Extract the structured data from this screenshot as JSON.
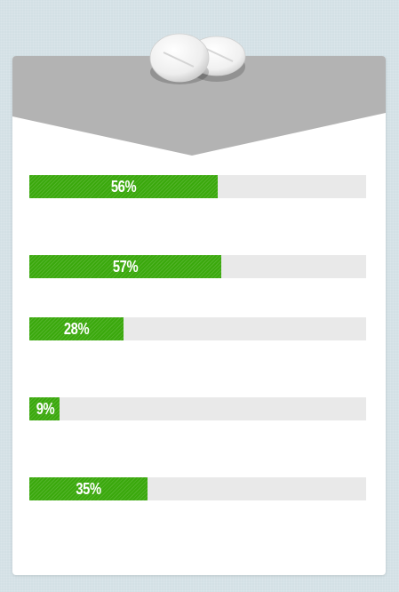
{
  "chart_data": {
    "type": "bar",
    "orientation": "horizontal",
    "unit": "%",
    "xlim": [
      0,
      100
    ],
    "values": [
      56,
      57,
      28,
      9,
      35
    ],
    "labels": [
      "56%",
      "57%",
      "28%",
      "9%",
      "35%"
    ]
  },
  "colors": {
    "background": "#d3e0e5",
    "card": "#ffffff",
    "header": "#b3b3b3",
    "track": "#e9e9e9",
    "fill": "#3aa80c",
    "label": "#ffffff"
  },
  "decoration": {
    "icon": "pills-icon"
  }
}
